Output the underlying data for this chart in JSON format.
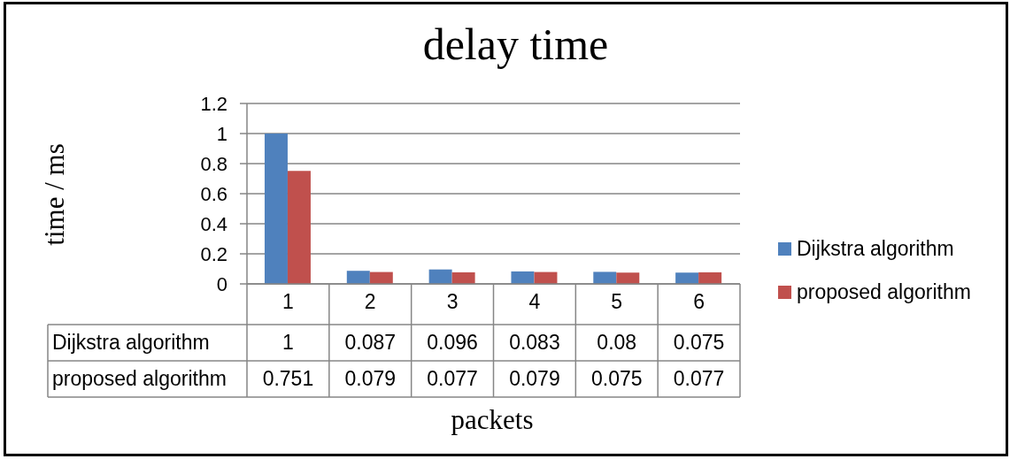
{
  "chart_data": {
    "type": "bar",
    "title": "delay time",
    "xlabel": "packets",
    "ylabel": "time / ms",
    "categories": [
      "1",
      "2",
      "3",
      "4",
      "5",
      "6"
    ],
    "series": [
      {
        "name": "Dijkstra algorithm",
        "color": "#4f81bd",
        "values": [
          1,
          0.087,
          0.096,
          0.083,
          0.08,
          0.075
        ]
      },
      {
        "name": "proposed algorithm",
        "color": "#c0504d",
        "values": [
          0.751,
          0.079,
          0.077,
          0.079,
          0.075,
          0.077
        ]
      }
    ],
    "ylim": [
      0,
      1.2
    ],
    "yticks": [
      0,
      0.2,
      0.4,
      0.6,
      0.8,
      1,
      1.2
    ],
    "grid": "y",
    "legend": "right",
    "data_labels": true
  }
}
